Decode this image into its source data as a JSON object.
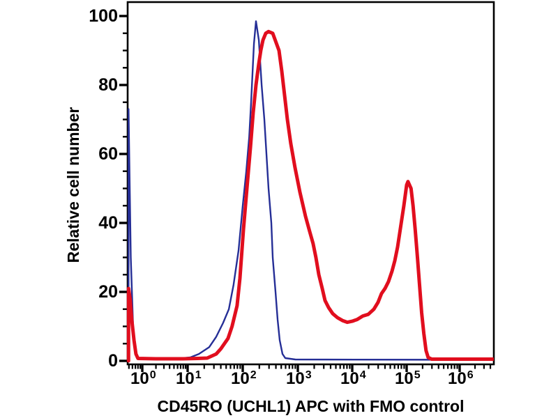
{
  "chart_data": {
    "type": "line",
    "title": "",
    "xlabel": "CD45RO (UCHL1) APC with FMO control",
    "ylabel": "Relative cell number",
    "x_scale": "log",
    "xlim": [
      0.47,
      4500000
    ],
    "ylim": [
      0,
      104
    ],
    "grid": false,
    "legend": "none",
    "axis_color": "#000000",
    "x_major_ticks": [
      {
        "base": "10",
        "exp": "0",
        "value": 1
      },
      {
        "base": "10",
        "exp": "1",
        "value": 10
      },
      {
        "base": "10",
        "exp": "2",
        "value": 100
      },
      {
        "base": "10",
        "exp": "3",
        "value": 1000
      },
      {
        "base": "10",
        "exp": "4",
        "value": 10000
      },
      {
        "base": "10",
        "exp": "5",
        "value": 100000
      },
      {
        "base": "10",
        "exp": "6",
        "value": 1000000
      }
    ],
    "x_minor_multipliers": [
      2,
      3,
      4,
      5,
      6,
      7,
      8,
      9
    ],
    "y_major_ticks": [
      0,
      20,
      40,
      60,
      80,
      100
    ],
    "y_minor_step": 5,
    "series": [
      {
        "name": "FMO control (blue)",
        "color": "#252e96",
        "stroke_width": 2.4,
        "points": [
          [
            0.49,
            0
          ],
          [
            0.49,
            73
          ],
          [
            0.55,
            30
          ],
          [
            0.62,
            10
          ],
          [
            0.7,
            3
          ],
          [
            0.8,
            0.6
          ],
          [
            2,
            0.4
          ],
          [
            5,
            0.5
          ],
          [
            11.2,
            1
          ],
          [
            16,
            2
          ],
          [
            24.7,
            4
          ],
          [
            33,
            7
          ],
          [
            44,
            11
          ],
          [
            56,
            15
          ],
          [
            68,
            22
          ],
          [
            84,
            32
          ],
          [
            100,
            45
          ],
          [
            116,
            55
          ],
          [
            131,
            65
          ],
          [
            142,
            75
          ],
          [
            152,
            85
          ],
          [
            160,
            92
          ],
          [
            174,
            98.5
          ],
          [
            196,
            93
          ],
          [
            220,
            80
          ],
          [
            247,
            70
          ],
          [
            269,
            60
          ],
          [
            294,
            50
          ],
          [
            330,
            40
          ],
          [
            350,
            30
          ],
          [
            394,
            20
          ],
          [
            429,
            12
          ],
          [
            469,
            6
          ],
          [
            527,
            2
          ],
          [
            592,
            0.8
          ],
          [
            900,
            0.4
          ],
          [
            4470000,
            0.3
          ]
        ]
      },
      {
        "name": "CD45RO (UCHL1) APC (red)",
        "color": "#e10e1e",
        "stroke_width": 5,
        "points": [
          [
            0.49,
            0
          ],
          [
            0.49,
            21
          ],
          [
            0.53,
            18
          ],
          [
            0.58,
            12
          ],
          [
            0.65,
            6
          ],
          [
            0.72,
            2
          ],
          [
            0.8,
            0.7
          ],
          [
            2,
            0.6
          ],
          [
            8,
            0.6
          ],
          [
            15,
            0.7
          ],
          [
            22.6,
            0.8
          ],
          [
            33,
            2
          ],
          [
            40,
            3.5
          ],
          [
            54,
            6.5
          ],
          [
            64,
            10
          ],
          [
            79,
            16
          ],
          [
            89,
            24
          ],
          [
            103,
            38
          ],
          [
            119,
            50
          ],
          [
            138,
            62
          ],
          [
            155,
            72
          ],
          [
            174,
            80
          ],
          [
            195,
            86
          ],
          [
            213,
            90
          ],
          [
            233,
            93
          ],
          [
            262,
            95
          ],
          [
            294,
            95.5
          ],
          [
            350,
            95
          ],
          [
            455,
            90
          ],
          [
            512,
            84
          ],
          [
            574,
            77
          ],
          [
            646,
            70
          ],
          [
            746,
            63
          ],
          [
            889,
            56
          ],
          [
            1090,
            49
          ],
          [
            1380,
            42
          ],
          [
            1650,
            37.5
          ],
          [
            1910,
            34
          ],
          [
            2150,
            30
          ],
          [
            2430,
            25
          ],
          [
            2810,
            21
          ],
          [
            3160,
            17.5
          ],
          [
            3670,
            15.5
          ],
          [
            4380,
            13.7
          ],
          [
            5380,
            12.5
          ],
          [
            6620,
            11.7
          ],
          [
            8130,
            11.2
          ],
          [
            10000,
            11.5
          ],
          [
            12300,
            12
          ],
          [
            15600,
            13
          ],
          [
            19700,
            13.5
          ],
          [
            25000,
            15
          ],
          [
            29800,
            17
          ],
          [
            34500,
            19.5
          ],
          [
            40100,
            21
          ],
          [
            46400,
            23
          ],
          [
            53800,
            26
          ],
          [
            60500,
            29
          ],
          [
            68100,
            33
          ],
          [
            74400,
            37
          ],
          [
            81300,
            41
          ],
          [
            88900,
            45
          ],
          [
            94200,
            48
          ],
          [
            100000,
            51
          ],
          [
            106000,
            52
          ],
          [
            121000,
            50
          ],
          [
            132000,
            45
          ],
          [
            145000,
            38
          ],
          [
            160000,
            30
          ],
          [
            175000,
            22
          ],
          [
            192000,
            14
          ],
          [
            211000,
            8
          ],
          [
            232000,
            3
          ],
          [
            254000,
            1
          ],
          [
            297000,
            0.5
          ],
          [
            4470000,
            0.5
          ]
        ]
      }
    ]
  }
}
